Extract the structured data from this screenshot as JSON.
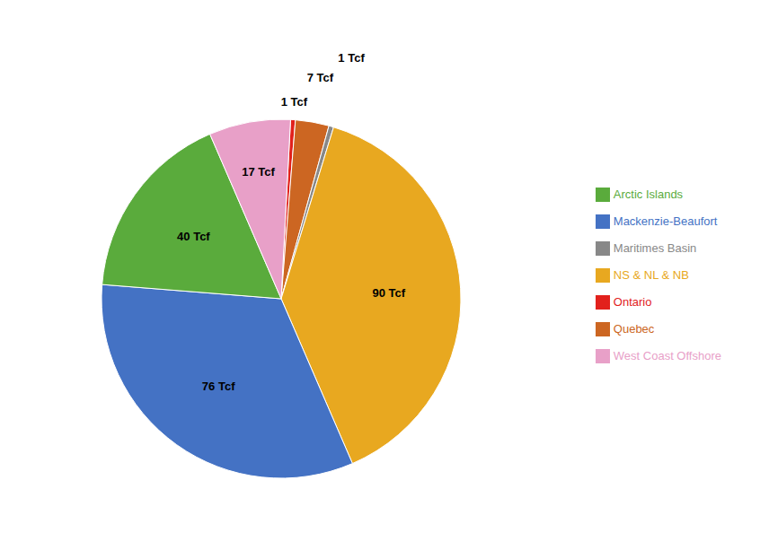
{
  "chart_data": {
    "type": "pie",
    "categories": [
      "Ontario",
      "Quebec",
      "Maritimes Basin",
      "NS & NL & NB",
      "Mackenzie-Beaufort",
      "Arctic Islands",
      "West Coast Offshore"
    ],
    "values": [
      1,
      7,
      1,
      90,
      76,
      40,
      17
    ],
    "value_labels": [
      "1 Tcf",
      "7 Tcf",
      "1 Tcf",
      "90 Tcf",
      "76 Tcf",
      "40 Tcf",
      "17 Tcf"
    ],
    "colors": [
      "#e2211c",
      "#cc6622",
      "#888888",
      "#e8a820",
      "#4472c4",
      "#5aab3c",
      "#e8a0c8"
    ],
    "data_labels": true,
    "legend": "right"
  }
}
